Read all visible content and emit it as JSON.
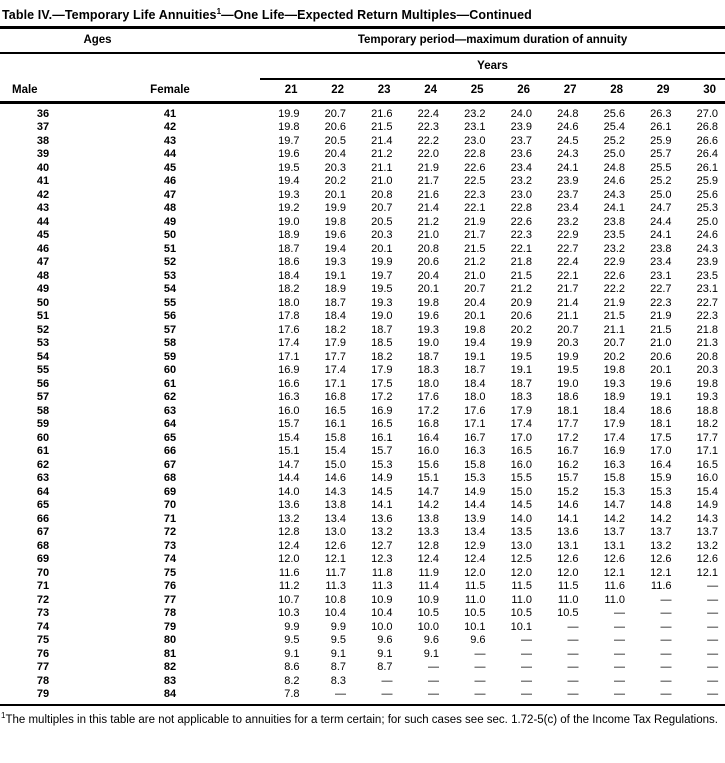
{
  "page": {
    "title_prefix": "Table IV.—Temporary Life Annuities",
    "title_footnote_marker": "1",
    "title_suffix": "—One Life—Expected Return Multiples—Continued"
  },
  "table": {
    "group_headers": {
      "ages_label": "Ages",
      "period_label": "Temporary period—maximum duration of annuity"
    },
    "years_label": "Years",
    "columns": {
      "male": "Male",
      "female": "Female",
      "years": [
        "21",
        "22",
        "23",
        "24",
        "25",
        "26",
        "27",
        "28",
        "29",
        "30"
      ]
    },
    "rows": [
      {
        "male": "36",
        "female": "41",
        "values": [
          "19.9",
          "20.7",
          "21.6",
          "22.4",
          "23.2",
          "24.0",
          "24.8",
          "25.6",
          "26.3",
          "27.0"
        ]
      },
      {
        "male": "37",
        "female": "42",
        "values": [
          "19.8",
          "20.6",
          "21.5",
          "22.3",
          "23.1",
          "23.9",
          "24.6",
          "25.4",
          "26.1",
          "26.8"
        ]
      },
      {
        "male": "38",
        "female": "43",
        "values": [
          "19.7",
          "20.5",
          "21.4",
          "22.2",
          "23.0",
          "23.7",
          "24.5",
          "25.2",
          "25.9",
          "26.6"
        ]
      },
      {
        "male": "39",
        "female": "44",
        "values": [
          "19.6",
          "20.4",
          "21.2",
          "22.0",
          "22.8",
          "23.6",
          "24.3",
          "25.0",
          "25.7",
          "26.4"
        ]
      },
      {
        "male": "40",
        "female": "45",
        "values": [
          "19.5",
          "20.3",
          "21.1",
          "21.9",
          "22.6",
          "23.4",
          "24.1",
          "24.8",
          "25.5",
          "26.1"
        ]
      },
      {
        "male": "41",
        "female": "46",
        "values": [
          "19.4",
          "20.2",
          "21.0",
          "21.7",
          "22.5",
          "23.2",
          "23.9",
          "24.6",
          "25.2",
          "25.9"
        ]
      },
      {
        "male": "42",
        "female": "47",
        "values": [
          "19.3",
          "20.1",
          "20.8",
          "21.6",
          "22.3",
          "23.0",
          "23.7",
          "24.3",
          "25.0",
          "25.6"
        ]
      },
      {
        "male": "43",
        "female": "48",
        "values": [
          "19.2",
          "19.9",
          "20.7",
          "21.4",
          "22.1",
          "22.8",
          "23.4",
          "24.1",
          "24.7",
          "25.3"
        ]
      },
      {
        "male": "44",
        "female": "49",
        "values": [
          "19.0",
          "19.8",
          "20.5",
          "21.2",
          "21.9",
          "22.6",
          "23.2",
          "23.8",
          "24.4",
          "25.0"
        ]
      },
      {
        "male": "45",
        "female": "50",
        "values": [
          "18.9",
          "19.6",
          "20.3",
          "21.0",
          "21.7",
          "22.3",
          "22.9",
          "23.5",
          "24.1",
          "24.6"
        ]
      },
      {
        "male": "46",
        "female": "51",
        "values": [
          "18.7",
          "19.4",
          "20.1",
          "20.8",
          "21.5",
          "22.1",
          "22.7",
          "23.2",
          "23.8",
          "24.3"
        ]
      },
      {
        "male": "47",
        "female": "52",
        "values": [
          "18.6",
          "19.3",
          "19.9",
          "20.6",
          "21.2",
          "21.8",
          "22.4",
          "22.9",
          "23.4",
          "23.9"
        ]
      },
      {
        "male": "48",
        "female": "53",
        "values": [
          "18.4",
          "19.1",
          "19.7",
          "20.4",
          "21.0",
          "21.5",
          "22.1",
          "22.6",
          "23.1",
          "23.5"
        ]
      },
      {
        "male": "49",
        "female": "54",
        "values": [
          "18.2",
          "18.9",
          "19.5",
          "20.1",
          "20.7",
          "21.2",
          "21.7",
          "22.2",
          "22.7",
          "23.1"
        ]
      },
      {
        "male": "50",
        "female": "55",
        "values": [
          "18.0",
          "18.7",
          "19.3",
          "19.8",
          "20.4",
          "20.9",
          "21.4",
          "21.9",
          "22.3",
          "22.7"
        ]
      },
      {
        "male": "51",
        "female": "56",
        "values": [
          "17.8",
          "18.4",
          "19.0",
          "19.6",
          "20.1",
          "20.6",
          "21.1",
          "21.5",
          "21.9",
          "22.3"
        ]
      },
      {
        "male": "52",
        "female": "57",
        "values": [
          "17.6",
          "18.2",
          "18.7",
          "19.3",
          "19.8",
          "20.2",
          "20.7",
          "21.1",
          "21.5",
          "21.8"
        ]
      },
      {
        "male": "53",
        "female": "58",
        "values": [
          "17.4",
          "17.9",
          "18.5",
          "19.0",
          "19.4",
          "19.9",
          "20.3",
          "20.7",
          "21.0",
          "21.3"
        ]
      },
      {
        "male": "54",
        "female": "59",
        "values": [
          "17.1",
          "17.7",
          "18.2",
          "18.7",
          "19.1",
          "19.5",
          "19.9",
          "20.2",
          "20.6",
          "20.8"
        ]
      },
      {
        "male": "55",
        "female": "60",
        "values": [
          "16.9",
          "17.4",
          "17.9",
          "18.3",
          "18.7",
          "19.1",
          "19.5",
          "19.8",
          "20.1",
          "20.3"
        ]
      },
      {
        "male": "56",
        "female": "61",
        "values": [
          "16.6",
          "17.1",
          "17.5",
          "18.0",
          "18.4",
          "18.7",
          "19.0",
          "19.3",
          "19.6",
          "19.8"
        ]
      },
      {
        "male": "57",
        "female": "62",
        "values": [
          "16.3",
          "16.8",
          "17.2",
          "17.6",
          "18.0",
          "18.3",
          "18.6",
          "18.9",
          "19.1",
          "19.3"
        ]
      },
      {
        "male": "58",
        "female": "63",
        "values": [
          "16.0",
          "16.5",
          "16.9",
          "17.2",
          "17.6",
          "17.9",
          "18.1",
          "18.4",
          "18.6",
          "18.8"
        ]
      },
      {
        "male": "59",
        "female": "64",
        "values": [
          "15.7",
          "16.1",
          "16.5",
          "16.8",
          "17.1",
          "17.4",
          "17.7",
          "17.9",
          "18.1",
          "18.2"
        ]
      },
      {
        "male": "60",
        "female": "65",
        "values": [
          "15.4",
          "15.8",
          "16.1",
          "16.4",
          "16.7",
          "17.0",
          "17.2",
          "17.4",
          "17.5",
          "17.7"
        ]
      },
      {
        "male": "61",
        "female": "66",
        "values": [
          "15.1",
          "15.4",
          "15.7",
          "16.0",
          "16.3",
          "16.5",
          "16.7",
          "16.9",
          "17.0",
          "17.1"
        ]
      },
      {
        "male": "62",
        "female": "67",
        "values": [
          "14.7",
          "15.0",
          "15.3",
          "15.6",
          "15.8",
          "16.0",
          "16.2",
          "16.3",
          "16.4",
          "16.5"
        ]
      },
      {
        "male": "63",
        "female": "68",
        "values": [
          "14.4",
          "14.6",
          "14.9",
          "15.1",
          "15.3",
          "15.5",
          "15.7",
          "15.8",
          "15.9",
          "16.0"
        ]
      },
      {
        "male": "64",
        "female": "69",
        "values": [
          "14.0",
          "14.3",
          "14.5",
          "14.7",
          "14.9",
          "15.0",
          "15.2",
          "15.3",
          "15.3",
          "15.4"
        ]
      },
      {
        "male": "65",
        "female": "70",
        "values": [
          "13.6",
          "13.8",
          "14.1",
          "14.2",
          "14.4",
          "14.5",
          "14.6",
          "14.7",
          "14.8",
          "14.9"
        ]
      },
      {
        "male": "66",
        "female": "71",
        "values": [
          "13.2",
          "13.4",
          "13.6",
          "13.8",
          "13.9",
          "14.0",
          "14.1",
          "14.2",
          "14.2",
          "14.3"
        ]
      },
      {
        "male": "67",
        "female": "72",
        "values": [
          "12.8",
          "13.0",
          "13.2",
          "13.3",
          "13.4",
          "13.5",
          "13.6",
          "13.7",
          "13.7",
          "13.7"
        ]
      },
      {
        "male": "68",
        "female": "73",
        "values": [
          "12.4",
          "12.6",
          "12.7",
          "12.8",
          "12.9",
          "13.0",
          "13.1",
          "13.1",
          "13.2",
          "13.2"
        ]
      },
      {
        "male": "69",
        "female": "74",
        "values": [
          "12.0",
          "12.1",
          "12.3",
          "12.4",
          "12.4",
          "12.5",
          "12.6",
          "12.6",
          "12.6",
          "12.6"
        ]
      },
      {
        "male": "70",
        "female": "75",
        "values": [
          "11.6",
          "11.7",
          "11.8",
          "11.9",
          "12.0",
          "12.0",
          "12.0",
          "12.1",
          "12.1",
          "12.1"
        ]
      },
      {
        "male": "71",
        "female": "76",
        "values": [
          "11.2",
          "11.3",
          "11.3",
          "11.4",
          "11.5",
          "11.5",
          "11.5",
          "11.6",
          "11.6",
          "—"
        ]
      },
      {
        "male": "72",
        "female": "77",
        "values": [
          "10.7",
          "10.8",
          "10.9",
          "10.9",
          "11.0",
          "11.0",
          "11.0",
          "11.0",
          "—",
          "—"
        ]
      },
      {
        "male": "73",
        "female": "78",
        "values": [
          "10.3",
          "10.4",
          "10.4",
          "10.5",
          "10.5",
          "10.5",
          "10.5",
          "—",
          "—",
          "—"
        ]
      },
      {
        "male": "74",
        "female": "79",
        "values": [
          "9.9",
          "9.9",
          "10.0",
          "10.0",
          "10.1",
          "10.1",
          "—",
          "—",
          "—",
          "—"
        ]
      },
      {
        "male": "75",
        "female": "80",
        "values": [
          "9.5",
          "9.5",
          "9.6",
          "9.6",
          "9.6",
          "—",
          "—",
          "—",
          "—",
          "—"
        ]
      },
      {
        "male": "76",
        "female": "81",
        "values": [
          "9.1",
          "9.1",
          "9.1",
          "9.1",
          "—",
          "—",
          "—",
          "—",
          "—",
          "—"
        ]
      },
      {
        "male": "77",
        "female": "82",
        "values": [
          "8.6",
          "8.7",
          "8.7",
          "—",
          "—",
          "—",
          "—",
          "—",
          "—",
          "—"
        ]
      },
      {
        "male": "78",
        "female": "83",
        "values": [
          "8.2",
          "8.3",
          "—",
          "—",
          "—",
          "—",
          "—",
          "—",
          "—",
          "—"
        ]
      },
      {
        "male": "79",
        "female": "84",
        "values": [
          "7.8",
          "—",
          "—",
          "—",
          "—",
          "—",
          "—",
          "—",
          "—",
          "—"
        ]
      }
    ]
  },
  "footnote": {
    "marker": "1",
    "text": "The multiples in this table are not applicable to annuities for a term certain; for such cases see sec. 1.72-5(c) of the Income Tax Regulations."
  }
}
